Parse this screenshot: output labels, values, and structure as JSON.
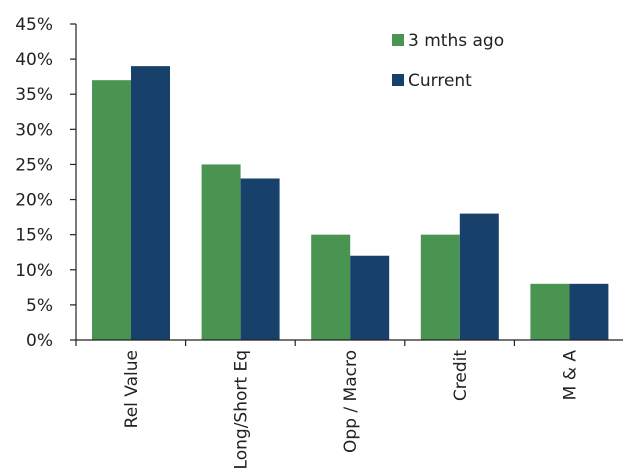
{
  "chart_data": {
    "type": "bar",
    "categories": [
      "Rel Value",
      "Long/Short Eq",
      "Opp / Macro",
      "Credit",
      "M & A"
    ],
    "series": [
      {
        "name": "3 mths ago",
        "values": [
          37,
          25,
          15,
          15,
          8
        ],
        "color": "#4a9452"
      },
      {
        "name": "Current",
        "values": [
          39,
          23,
          12,
          18,
          8
        ],
        "color": "#17416b"
      }
    ],
    "ylim": [
      0,
      45
    ],
    "yticks": [
      0,
      5,
      10,
      15,
      20,
      25,
      30,
      35,
      40,
      45
    ],
    "ytick_labels": [
      "0%",
      "5%",
      "10%",
      "15%",
      "20%",
      "25%",
      "30%",
      "35%",
      "40%",
      "45%"
    ],
    "title": "",
    "xlabel": "",
    "ylabel": "",
    "grid": false,
    "legend_position": "top-right",
    "axis_color": "#222222"
  }
}
